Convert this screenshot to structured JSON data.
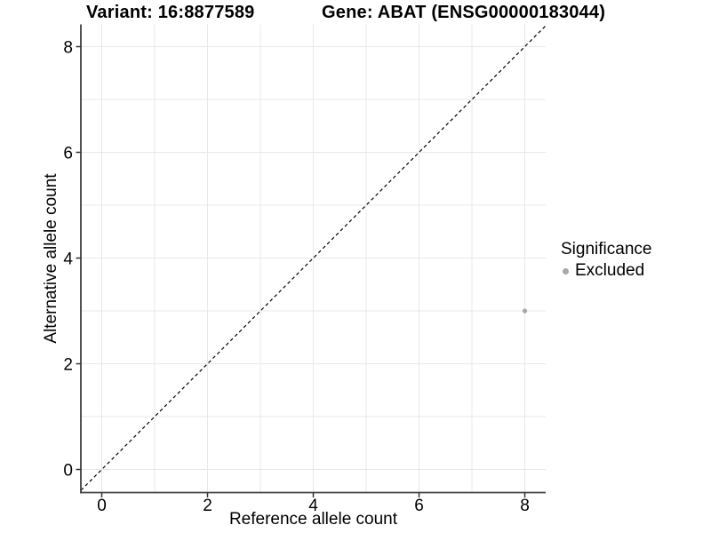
{
  "title": {
    "left": "Variant: 16:8877589",
    "right": "Gene: ABAT (ENSG00000183044)"
  },
  "chart_data": {
    "type": "scatter",
    "xlabel": "Reference allele count",
    "ylabel": "Alternative allele count",
    "xlim": [
      -0.395,
      8.395
    ],
    "ylim": [
      -0.437,
      8.42
    ],
    "x_ticks": [
      0,
      2,
      4,
      6,
      8
    ],
    "y_ticks": [
      0,
      2,
      4,
      6,
      8
    ],
    "x_minor_gridlines": [
      1,
      3,
      5,
      7
    ],
    "y_minor_gridlines": [
      1,
      3,
      5,
      7
    ],
    "grid": true,
    "points": [
      {
        "x": 8,
        "y": 3,
        "series": "Excluded"
      }
    ],
    "identity_line": {
      "style": "dashed",
      "from": -0.395,
      "to": 8.395
    },
    "legend": {
      "position": "right",
      "title": "Significance",
      "items": [
        {
          "label": "Excluded",
          "color": "#a8a8a8"
        }
      ]
    },
    "colors": {
      "point": "#a8a8a8",
      "grid": "#e8e8e8",
      "axis": "#404040",
      "tick": "#333333",
      "identity": "#000000",
      "text": "#000000"
    }
  }
}
